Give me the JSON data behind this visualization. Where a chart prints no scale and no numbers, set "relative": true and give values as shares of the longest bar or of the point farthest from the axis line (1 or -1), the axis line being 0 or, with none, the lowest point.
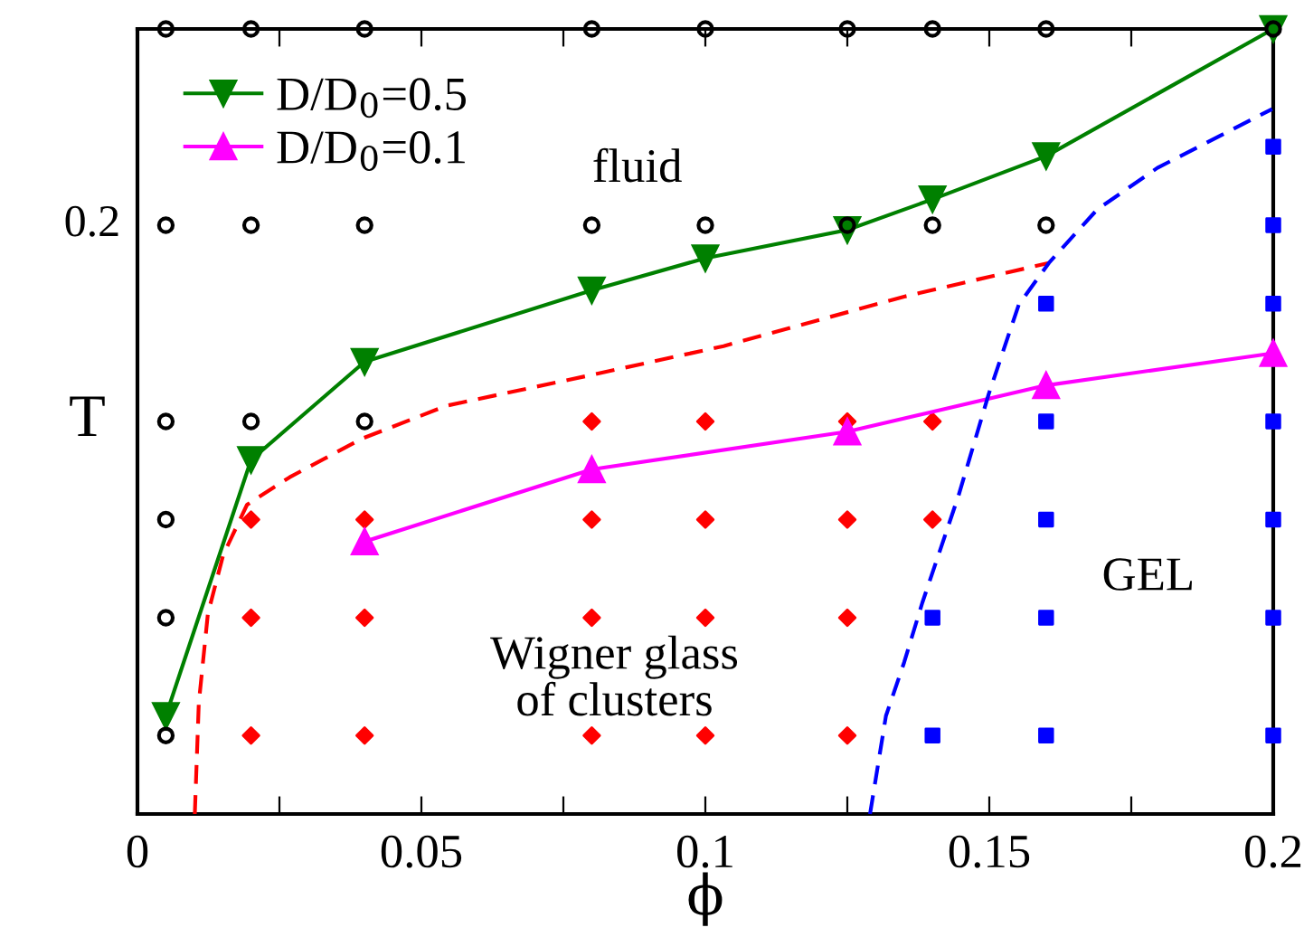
{
  "chart_data": {
    "type": "scatter",
    "relative": true,
    "xlabel": "ϕ",
    "ylabel": "T",
    "xlim": [
      0,
      0.2
    ],
    "xticks": [
      0,
      {
        "value": 0.025,
        "label": null
      },
      0.05,
      {
        "value": 0.075,
        "label": null
      },
      0.1,
      {
        "value": 0.125,
        "label": null
      },
      0.15,
      {
        "value": 0.175,
        "label": null
      },
      0.2
    ],
    "legend": "top left",
    "grid": false,
    "annotations": [
      "fluid",
      "Wigner glass\nof clusters",
      "GEL",
      "0.2"
    ],
    "series": [
      {
        "marker": "circle",
        "color": "#000000",
        "x": [
          0.005,
          0.02,
          0.04,
          0.08,
          0.1,
          0.125,
          0.14,
          0.16,
          0.2,
          0.005,
          0.02,
          0.04,
          0.08,
          0.1,
          0.125,
          0.14,
          0.16,
          0.005,
          0.02,
          0.04,
          0.005,
          0.005,
          0.005
        ],
        "values": [
          1,
          1,
          1,
          1,
          1,
          1,
          1,
          1,
          1,
          0.75,
          0.75,
          0.75,
          0.75,
          0.75,
          0.75,
          0.75,
          0.75,
          0.5,
          0.5,
          0.5,
          0.375,
          0.25,
          0.1
        ]
      },
      {
        "marker": "diamond",
        "color": "#ff0000",
        "x": [
          0.08,
          0.1,
          0.125,
          0.14,
          0.02,
          0.04,
          0.08,
          0.1,
          0.125,
          0.14,
          0.02,
          0.04,
          0.08,
          0.1,
          0.125,
          0.02,
          0.04,
          0.08,
          0.1,
          0.125
        ],
        "values": [
          0.5,
          0.5,
          0.5,
          0.5,
          0.375,
          0.375,
          0.375,
          0.375,
          0.375,
          0.375,
          0.25,
          0.25,
          0.25,
          0.25,
          0.25,
          0.1,
          0.1,
          0.1,
          0.1,
          0.1
        ]
      },
      {
        "marker": "square",
        "color": "#0000ff",
        "x": [
          0.2,
          0.2,
          0.2,
          0.2,
          0.2,
          0.2,
          0.2,
          0.16,
          0.16,
          0.16,
          0.16,
          0.16,
          0.14,
          0.14
        ],
        "values": [
          0.85,
          0.75,
          0.65,
          0.5,
          0.375,
          0.25,
          0.1,
          0.65,
          0.5,
          0.375,
          0.25,
          0.1,
          0.25,
          0.1
        ]
      },
      {
        "type": "line",
        "name": "D/D$_{0}$=0.5",
        "marker": "triangle_down",
        "line_style": "solid",
        "color": "#008000",
        "x": [
          0.005,
          0.02,
          0.04,
          0.08,
          0.1,
          0.125,
          0.14,
          0.16,
          0.2
        ],
        "values": [
          0.125,
          0.451,
          0.576,
          0.667,
          0.708,
          0.744,
          0.783,
          0.838,
          1.0
        ]
      },
      {
        "type": "line",
        "name": "D/D$_{0}$=0.1",
        "marker": "triangle",
        "line_style": "solid",
        "color": "#ff00ff",
        "x": [
          0.04,
          0.08,
          0.125,
          0.16,
          0.2
        ],
        "values": [
          0.347,
          0.439,
          0.487,
          0.546,
          0.587
        ]
      },
      {
        "type": "line",
        "marker": "none",
        "line_style": "dashed",
        "color": "#ff0000",
        "x": [
          0.0101,
          0.0108,
          0.0124,
          0.0151,
          0.0193,
          0.0268,
          0.0395,
          0.0544,
          0.0798,
          0.1032,
          0.135,
          0.1605
        ],
        "values": [
          0,
          0.141,
          0.255,
          0.33,
          0.394,
          0.429,
          0.478,
          0.52,
          0.559,
          0.596,
          0.659,
          0.702
        ]
      },
      {
        "type": "line",
        "marker": "none",
        "line_style": "dashed",
        "color": "#0000ff",
        "x": [
          0.129,
          0.1318,
          0.135,
          0.1382,
          0.1446,
          0.1499,
          0.1552,
          0.1605,
          0.169,
          0.1796,
          0.1998
        ],
        "values": [
          0,
          0.125,
          0.193,
          0.269,
          0.406,
          0.535,
          0.649,
          0.702,
          0.77,
          0.823,
          0.898
        ]
      }
    ]
  }
}
